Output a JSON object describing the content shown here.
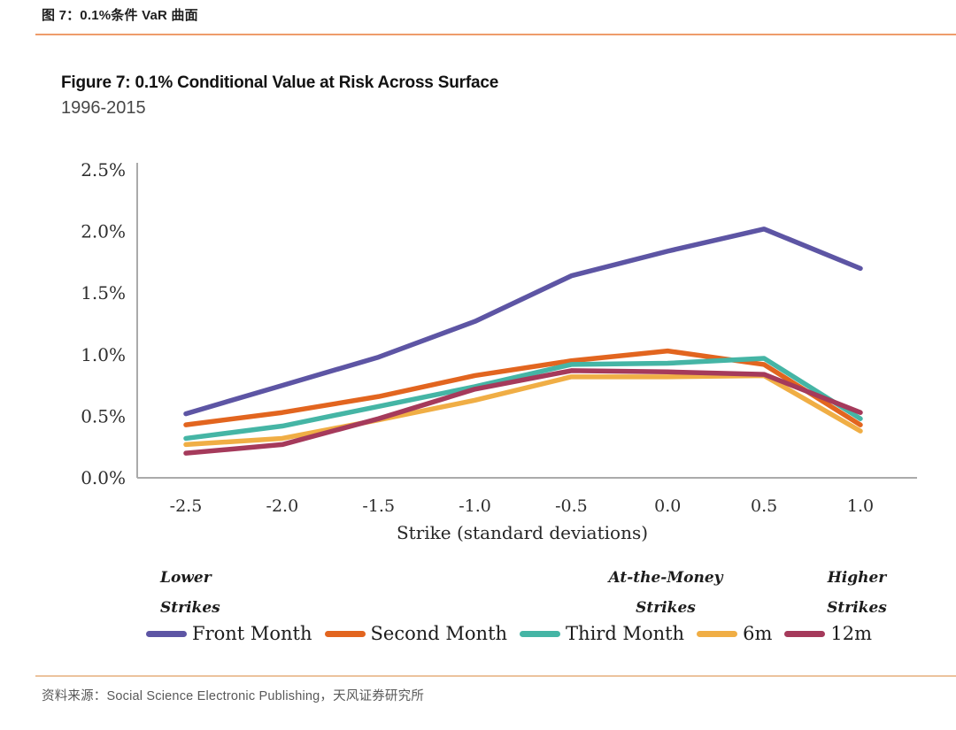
{
  "header": {
    "caption_cn": "图 7：0.1%条件 VaR 曲面"
  },
  "figure": {
    "title": "Figure 7: 0.1% Conditional Value at Risk Across Surface",
    "subtitle": "1996-2015"
  },
  "chart_data": {
    "type": "line",
    "title": "Figure 7: 0.1% Conditional Value at Risk Across Surface",
    "subtitle": "1996-2015",
    "xlabel": "Strike (standard deviations)",
    "ylabel": "",
    "x": [
      -2.5,
      -2.0,
      -1.5,
      -1.0,
      -0.5,
      0.0,
      0.5,
      1.0
    ],
    "x_tick_labels": [
      "-2.5",
      "-2.0",
      "-1.5",
      "-1.0",
      "-0.5",
      "0.0",
      "0.5",
      "1.0"
    ],
    "xlim": [
      -2.5,
      1.0
    ],
    "y_ticks": [
      0.0,
      0.5,
      1.0,
      1.5,
      2.0,
      2.5
    ],
    "y_tick_labels": [
      "0.0%",
      "0.5%",
      "1.0%",
      "1.5%",
      "2.0%",
      "2.5%"
    ],
    "ylim": [
      0,
      2.5
    ],
    "grid": false,
    "legend_position": "bottom",
    "series": [
      {
        "name": "Front Month",
        "color": "#5D55A4",
        "values": [
          0.52,
          0.75,
          0.98,
          1.27,
          1.64,
          1.84,
          2.02,
          1.7
        ]
      },
      {
        "name": "Second Month",
        "color": "#E2651F",
        "values": [
          0.43,
          0.53,
          0.66,
          0.83,
          0.95,
          1.03,
          0.92,
          0.43
        ]
      },
      {
        "name": "Third Month",
        "color": "#45B5A5",
        "values": [
          0.32,
          0.42,
          0.58,
          0.74,
          0.92,
          0.93,
          0.97,
          0.48
        ]
      },
      {
        "name": "6m",
        "color": "#F0AE45",
        "values": [
          0.27,
          0.32,
          0.47,
          0.63,
          0.82,
          0.82,
          0.83,
          0.38
        ]
      },
      {
        "name": "12m",
        "color": "#A53A5B",
        "values": [
          0.2,
          0.27,
          0.48,
          0.72,
          0.87,
          0.86,
          0.84,
          0.53
        ]
      }
    ],
    "annotations": [
      {
        "line1": "Lower",
        "line2": "Strikes"
      },
      {
        "line1": "At-the-Money",
        "line2": "Strikes"
      },
      {
        "line1": "Higher",
        "line2": "Strikes"
      }
    ]
  },
  "footer": {
    "source": "资料来源：Social Science Electronic Publishing，天风证券研究所"
  },
  "colors": {
    "header_rule": "#EE9C6B",
    "footer_rule": "#ECC39D",
    "axis": "#ABABAB",
    "tick_text": "#2E2E2E"
  }
}
